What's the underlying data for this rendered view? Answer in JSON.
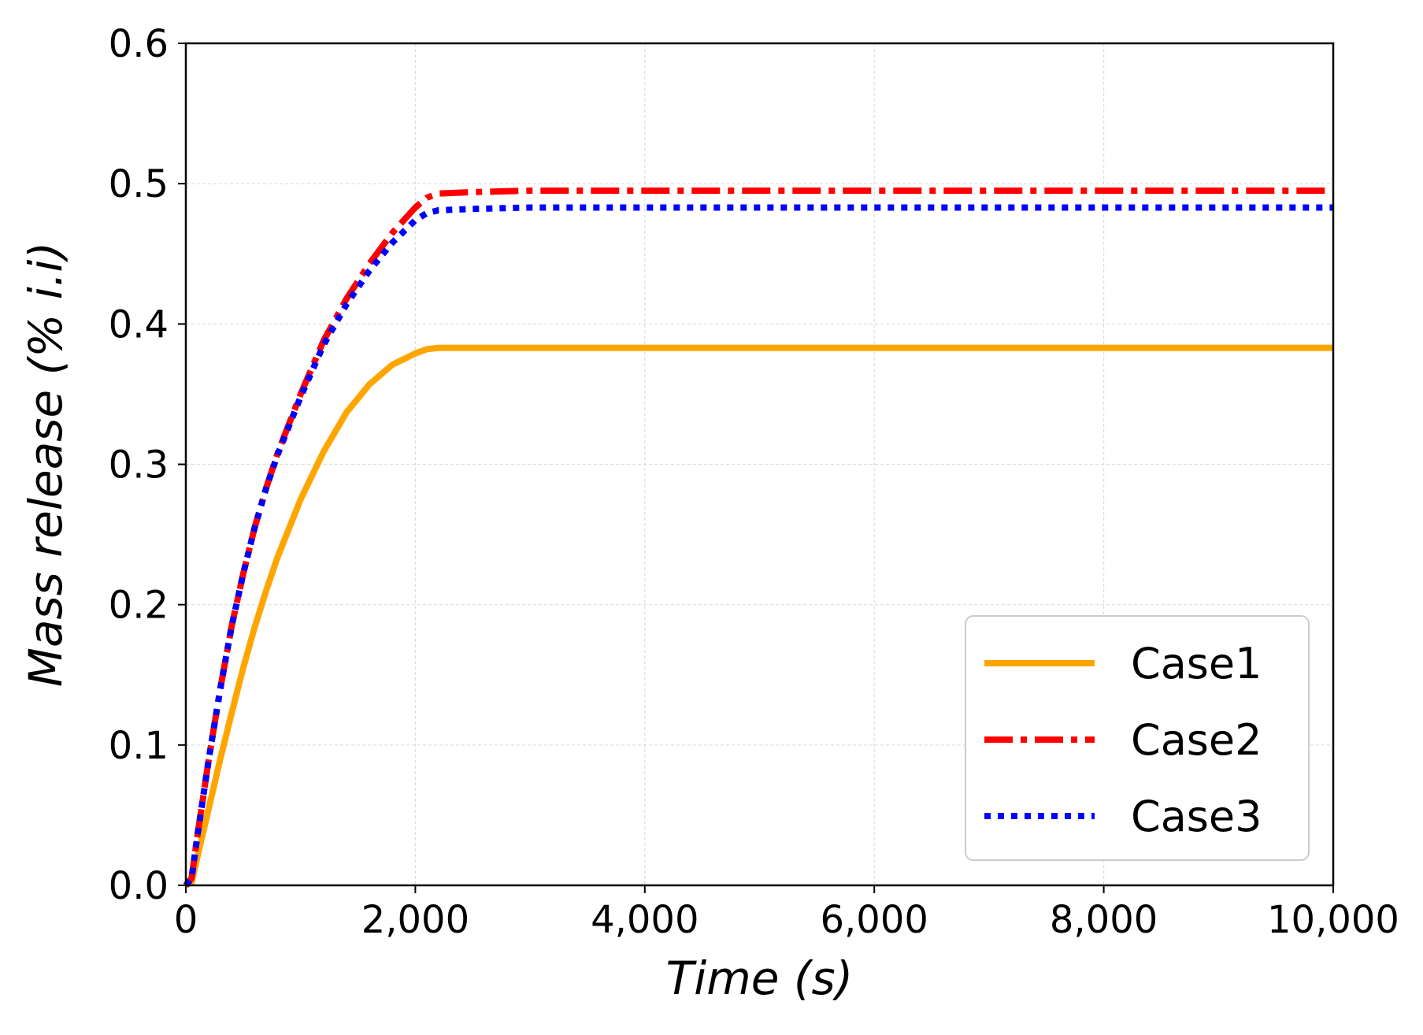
{
  "chart_data": {
    "type": "line",
    "title": "",
    "xlabel": "Time (s)",
    "ylabel": "Mass release (% i.i)",
    "xlim": [
      0,
      10000
    ],
    "ylim": [
      0,
      0.6
    ],
    "x_ticks": [
      "0",
      "2,000",
      "4,000",
      "6,000",
      "8,000",
      "10,000"
    ],
    "y_ticks": [
      "0.0",
      "0.1",
      "0.2",
      "0.3",
      "0.4",
      "0.5",
      "0.6"
    ],
    "grid": true,
    "legend_position": "lower-right",
    "series": [
      {
        "name": "Case1",
        "color": "#FFA500",
        "style": "solid",
        "x": [
          0,
          50,
          100,
          200,
          300,
          400,
          500,
          600,
          700,
          800,
          1000,
          1200,
          1400,
          1600,
          1800,
          2000,
          2100,
          2200,
          2500,
          3000,
          4000,
          5000,
          6000,
          7000,
          8000,
          9000,
          10000
        ],
        "y": [
          0,
          0.002,
          0.02,
          0.055,
          0.09,
          0.123,
          0.155,
          0.184,
          0.21,
          0.234,
          0.275,
          0.309,
          0.337,
          0.357,
          0.371,
          0.379,
          0.382,
          0.383,
          0.383,
          0.383,
          0.383,
          0.383,
          0.383,
          0.383,
          0.383,
          0.383,
          0.383
        ]
      },
      {
        "name": "Case2",
        "color": "#FF0000",
        "style": "dashdot",
        "x": [
          0,
          50,
          100,
          200,
          300,
          400,
          500,
          600,
          700,
          800,
          1000,
          1200,
          1400,
          1600,
          1800,
          2000,
          2100,
          2200,
          2500,
          3000,
          4000,
          5000,
          6000,
          7000,
          8000,
          9000,
          10000
        ],
        "y": [
          0,
          0.005,
          0.035,
          0.09,
          0.14,
          0.185,
          0.222,
          0.255,
          0.283,
          0.308,
          0.35,
          0.388,
          0.418,
          0.443,
          0.465,
          0.483,
          0.49,
          0.493,
          0.494,
          0.495,
          0.495,
          0.495,
          0.495,
          0.495,
          0.495,
          0.495,
          0.495
        ]
      },
      {
        "name": "Case3",
        "color": "#0000FF",
        "style": "dotted",
        "x": [
          0,
          50,
          100,
          200,
          300,
          400,
          500,
          600,
          700,
          800,
          1000,
          1200,
          1400,
          1600,
          1800,
          2000,
          2100,
          2200,
          2500,
          3000,
          4000,
          5000,
          6000,
          7000,
          8000,
          9000,
          10000
        ],
        "y": [
          0,
          0.005,
          0.035,
          0.09,
          0.14,
          0.185,
          0.222,
          0.255,
          0.283,
          0.307,
          0.348,
          0.385,
          0.414,
          0.438,
          0.458,
          0.474,
          0.479,
          0.481,
          0.482,
          0.483,
          0.483,
          0.483,
          0.483,
          0.483,
          0.483,
          0.483,
          0.483
        ]
      }
    ]
  }
}
